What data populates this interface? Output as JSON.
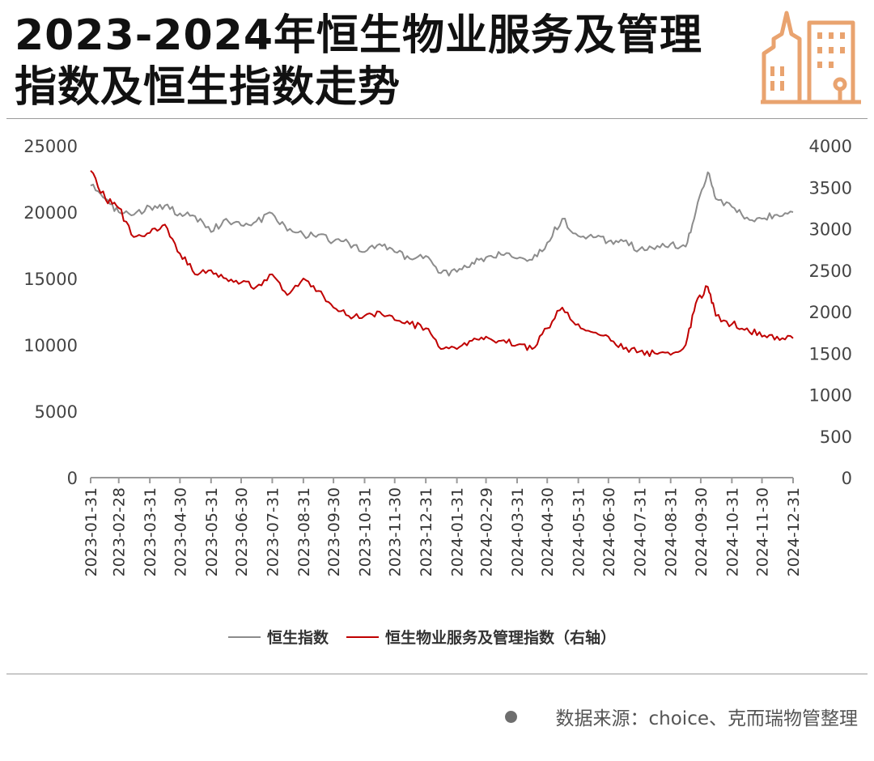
{
  "title": "2023-2024年恒生物业服务及管理指数及恒生指数走势",
  "source": "数据来源：choice、克而瑞物管整理",
  "colors": {
    "hsi": "#8c8c8c",
    "property_index": "#c00000",
    "logo": "#e9a36f",
    "axis": "#9a9a9a"
  },
  "logo_icon": "city-buildings-icon",
  "chart_data": {
    "type": "line",
    "title": "",
    "xlabel": "",
    "ylabel": "",
    "y2label": "",
    "ylim": [
      0,
      25000
    ],
    "y2lim": [
      0,
      4000
    ],
    "yticks": [
      "0",
      "5000",
      "10000",
      "15000",
      "20000",
      "25000"
    ],
    "y2ticks": [
      "0",
      "500",
      "1000",
      "1500",
      "2000",
      "2500",
      "3000",
      "3500",
      "4000"
    ],
    "xticks": [
      "2023-01-31",
      "2023-02-28",
      "2023-03-31",
      "2023-04-30",
      "2023-05-31",
      "2023-06-30",
      "2023-07-31",
      "2023-08-31",
      "2023-09-30",
      "2023-10-31",
      "2023-11-30",
      "2023-12-31",
      "2024-01-31",
      "2024-02-29",
      "2024-03-31",
      "2024-04-30",
      "2024-05-31",
      "2024-06-30",
      "2024-07-31",
      "2024-08-31",
      "2024-09-30",
      "2024-10-31",
      "2024-11-30",
      "2024-12-31"
    ],
    "grid": false,
    "legend_position": "bottom-center",
    "series": [
      {
        "name": "恒生指数",
        "axis": "left",
        "x": [
          "2023-01-31",
          "2023-02-15",
          "2023-02-28",
          "2023-03-15",
          "2023-03-31",
          "2023-04-15",
          "2023-04-30",
          "2023-05-15",
          "2023-05-31",
          "2023-06-15",
          "2023-06-30",
          "2023-07-15",
          "2023-07-31",
          "2023-08-15",
          "2023-08-31",
          "2023-09-15",
          "2023-09-30",
          "2023-10-15",
          "2023-10-31",
          "2023-11-15",
          "2023-11-30",
          "2023-12-15",
          "2023-12-31",
          "2024-01-15",
          "2024-01-31",
          "2024-02-15",
          "2024-02-29",
          "2024-03-15",
          "2024-03-31",
          "2024-04-15",
          "2024-04-30",
          "2024-05-15",
          "2024-05-31",
          "2024-06-15",
          "2024-06-30",
          "2024-07-15",
          "2024-07-31",
          "2024-08-15",
          "2024-08-31",
          "2024-09-15",
          "2024-09-25",
          "2024-10-07",
          "2024-10-15",
          "2024-10-31",
          "2024-11-15",
          "2024-11-30",
          "2024-12-15",
          "2024-12-31"
        ],
        "values": [
          22000,
          21000,
          20000,
          19800,
          20400,
          20500,
          19900,
          19700,
          18500,
          19500,
          19000,
          19300,
          19900,
          18600,
          18300,
          18300,
          17800,
          17700,
          17000,
          17600,
          17000,
          16500,
          16700,
          15400,
          15500,
          16200,
          16600,
          16800,
          16500,
          16400,
          17700,
          19500,
          18200,
          18100,
          17800,
          17800,
          17200,
          17200,
          17600,
          17400,
          20000,
          23000,
          21000,
          20400,
          19600,
          19500,
          19800,
          20000
        ]
      },
      {
        "name": "恒生物业服务及管理指数（右轴）",
        "axis": "right",
        "x": [
          "2023-01-31",
          "2023-02-15",
          "2023-02-28",
          "2023-03-15",
          "2023-03-31",
          "2023-04-15",
          "2023-04-30",
          "2023-05-15",
          "2023-05-31",
          "2023-06-15",
          "2023-06-30",
          "2023-07-15",
          "2023-07-31",
          "2023-08-15",
          "2023-08-31",
          "2023-09-15",
          "2023-09-30",
          "2023-10-15",
          "2023-10-31",
          "2023-11-15",
          "2023-11-30",
          "2023-12-15",
          "2023-12-31",
          "2024-01-15",
          "2024-01-31",
          "2024-02-15",
          "2024-02-29",
          "2024-03-15",
          "2024-03-31",
          "2024-04-15",
          "2024-04-30",
          "2024-05-15",
          "2024-05-31",
          "2024-06-15",
          "2024-06-30",
          "2024-07-15",
          "2024-07-31",
          "2024-08-15",
          "2024-08-31",
          "2024-09-15",
          "2024-09-25",
          "2024-10-07",
          "2024-10-15",
          "2024-10-31",
          "2024-11-15",
          "2024-11-30",
          "2024-12-15",
          "2024-12-31"
        ],
        "values": [
          3700,
          3350,
          3250,
          2900,
          2950,
          3050,
          2700,
          2450,
          2500,
          2400,
          2350,
          2300,
          2450,
          2200,
          2400,
          2250,
          2050,
          1950,
          1950,
          2000,
          1900,
          1850,
          1800,
          1550,
          1550,
          1650,
          1700,
          1650,
          1600,
          1550,
          1800,
          2050,
          1850,
          1750,
          1700,
          1550,
          1520,
          1500,
          1480,
          1600,
          2100,
          2300,
          1950,
          1850,
          1800,
          1700,
          1700,
          1680
        ]
      }
    ]
  }
}
